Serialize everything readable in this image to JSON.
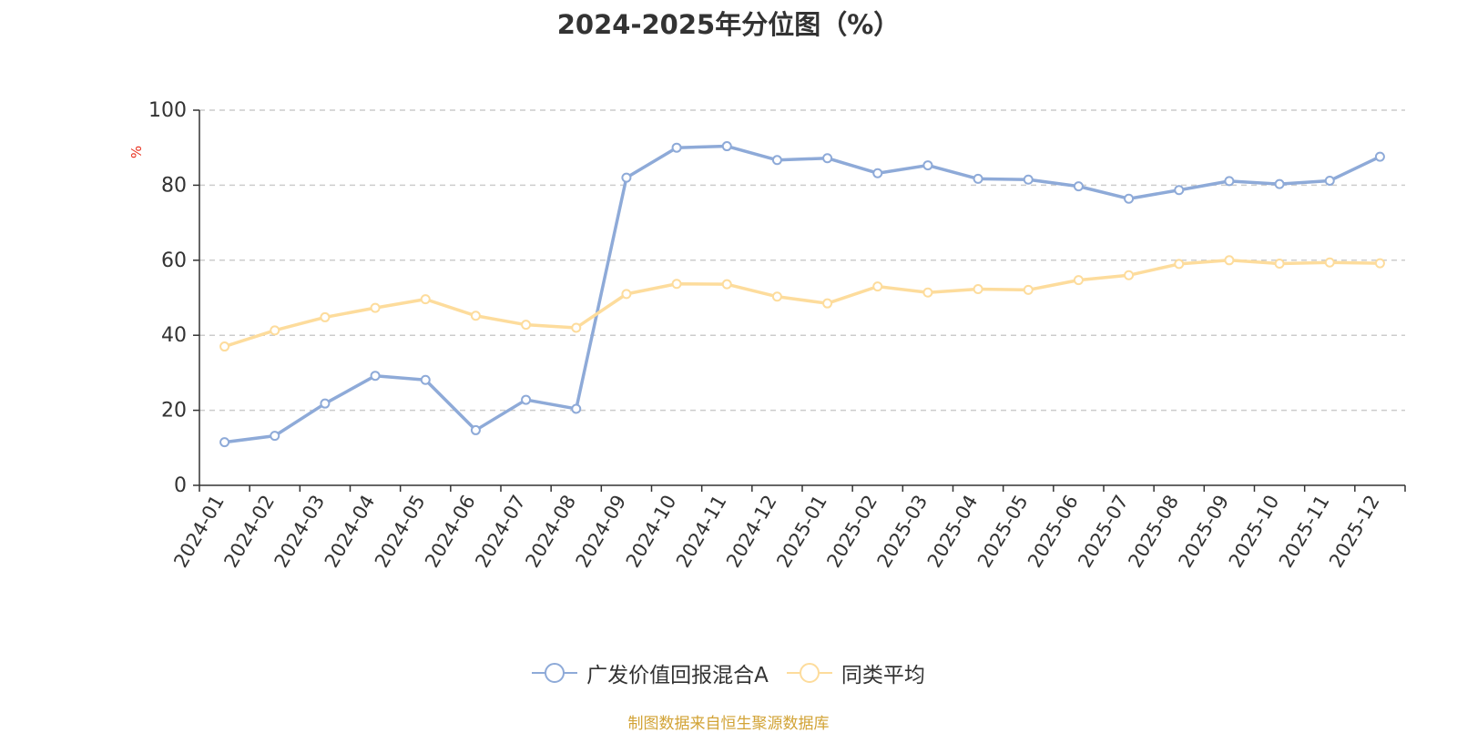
{
  "chart_data": {
    "type": "line",
    "title": "2024-2025年分位图（%）",
    "ylabel": "%",
    "ylim": [
      0,
      100
    ],
    "yticks": [
      0,
      20,
      40,
      60,
      80,
      100
    ],
    "grid": true,
    "legend_position": "bottom",
    "categories": [
      "2024-01",
      "2024-02",
      "2024-03",
      "2024-04",
      "2024-05",
      "2024-06",
      "2024-07",
      "2024-08",
      "2024-09",
      "2024-10",
      "2024-11",
      "2024-12",
      "2025-01",
      "2025-02",
      "2025-03",
      "2025-04",
      "2025-05",
      "2025-06",
      "2025-07",
      "2025-08",
      "2025-09",
      "2025-10",
      "2025-11",
      "2025-12"
    ],
    "series": [
      {
        "name": "广发价值回报混合A",
        "color": "#8eaad8",
        "values": [
          11.5,
          13.2,
          21.8,
          29.2,
          28.1,
          14.7,
          22.8,
          20.4,
          82.0,
          90.0,
          90.4,
          86.7,
          87.2,
          83.2,
          85.3,
          81.7,
          81.5,
          79.7,
          76.4,
          78.7,
          81.1,
          80.3,
          81.2,
          87.6
        ]
      },
      {
        "name": "同类平均",
        "color": "#fddc9c",
        "values": [
          37.0,
          41.3,
          44.8,
          47.3,
          49.6,
          45.2,
          42.8,
          42.0,
          51.0,
          53.7,
          53.6,
          50.3,
          48.5,
          53.0,
          51.4,
          52.3,
          52.1,
          54.7,
          56.0,
          59.0,
          60.0,
          59.1,
          59.4,
          59.2
        ]
      }
    ],
    "source": "制图数据来自恒生聚源数据库",
    "colors": {
      "axis": "#333333",
      "grid": "#cccccc",
      "unit": "#e8301e",
      "source": "#d2a336",
      "text": "#333333"
    }
  }
}
